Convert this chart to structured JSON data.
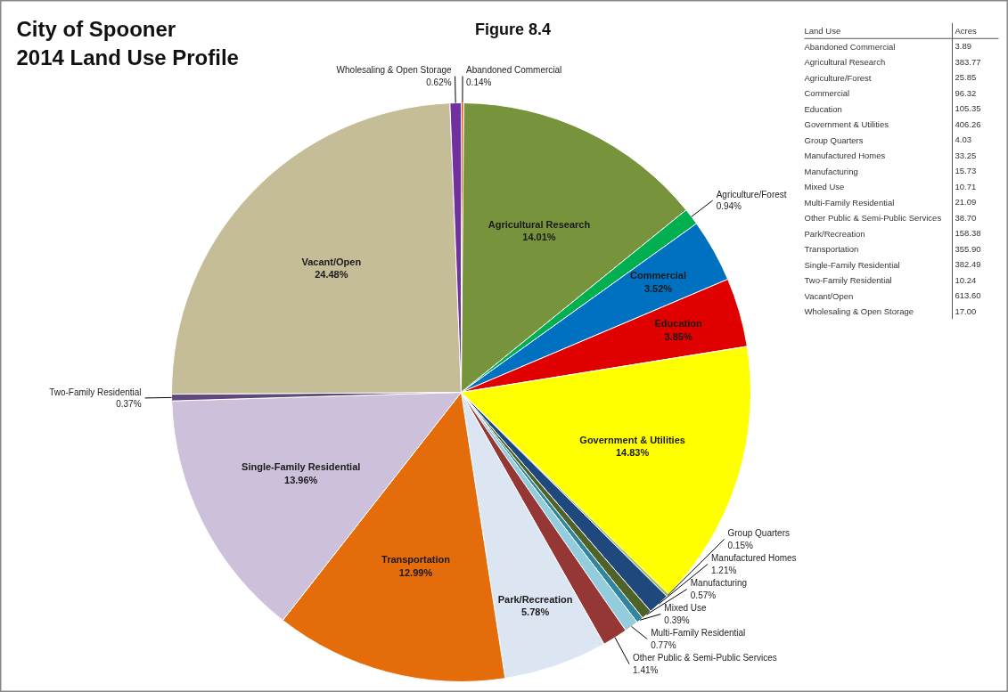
{
  "chart_data": {
    "type": "pie",
    "title": "City of Spooner\n2014 Land Use Profile",
    "subtitle": "Figure 8.4",
    "categories": [
      "Abandoned Commercial",
      "Agricultural Research",
      "Agriculture/Forest",
      "Commercial",
      "Education",
      "Government & Utilities",
      "Group Quarters",
      "Manufactured Homes",
      "Manufacturing",
      "Mixed Use",
      "Multi-Family Residential",
      "Other Public & Semi-Public Services",
      "Park/Recreation",
      "Transportation",
      "Single-Family Residential",
      "Two-Family Residential",
      "Vacant/Open",
      "Wholesaling & Open Storage"
    ],
    "values": [
      0.14,
      14.01,
      0.94,
      3.52,
      3.85,
      14.83,
      0.15,
      1.21,
      0.57,
      0.39,
      0.77,
      1.41,
      5.78,
      12.99,
      13.96,
      0.37,
      24.48,
      0.62
    ],
    "value_labels": [
      "0.14%",
      "14.01%",
      "0.94%",
      "3.52%",
      "3.85%",
      "14.83%",
      "0.15%",
      "1.21%",
      "0.57%",
      "0.39%",
      "0.77%",
      "1.41%",
      "5.78%",
      "12.99%",
      "13.96%",
      "0.37%",
      "24.48%",
      "0.62%"
    ],
    "colors": [
      "#e2592b",
      "#77933c",
      "#00b050",
      "#0070c0",
      "#e00000",
      "#ffff00",
      "#9bbb59",
      "#1f497d",
      "#4f6228",
      "#31859c",
      "#93cddd",
      "#953735",
      "#dce6f2",
      "#e46c0a",
      "#ccc0da",
      "#604a7b",
      "#c4bd97",
      "#7030a0"
    ],
    "annotations": [
      "Land Use",
      "Acres",
      "Abandoned Commercial",
      "3.89",
      "Agricultural Research",
      "383.77",
      "Agriculture/Forest",
      "25.85",
      "Commercial",
      "96.32",
      "Education",
      "105.35",
      "Government & Utilities",
      "406.26",
      "Group Quarters",
      "4.03",
      "Manufactured Homes",
      "33.25",
      "Manufacturing",
      "15.73",
      "Mixed Use",
      "10.71",
      "Multi-Family Residential",
      "21.09",
      "Other Public & Semi-Public Services",
      "38.70",
      "Park/Recreation",
      "158.38",
      "Transportation",
      "355.90",
      "Single-Family Residential",
      "382.49",
      "Two-Family Residential",
      "10.24",
      "Vacant/Open",
      "613.60",
      "Wholesaling & Open Storage",
      "17.00"
    ]
  }
}
